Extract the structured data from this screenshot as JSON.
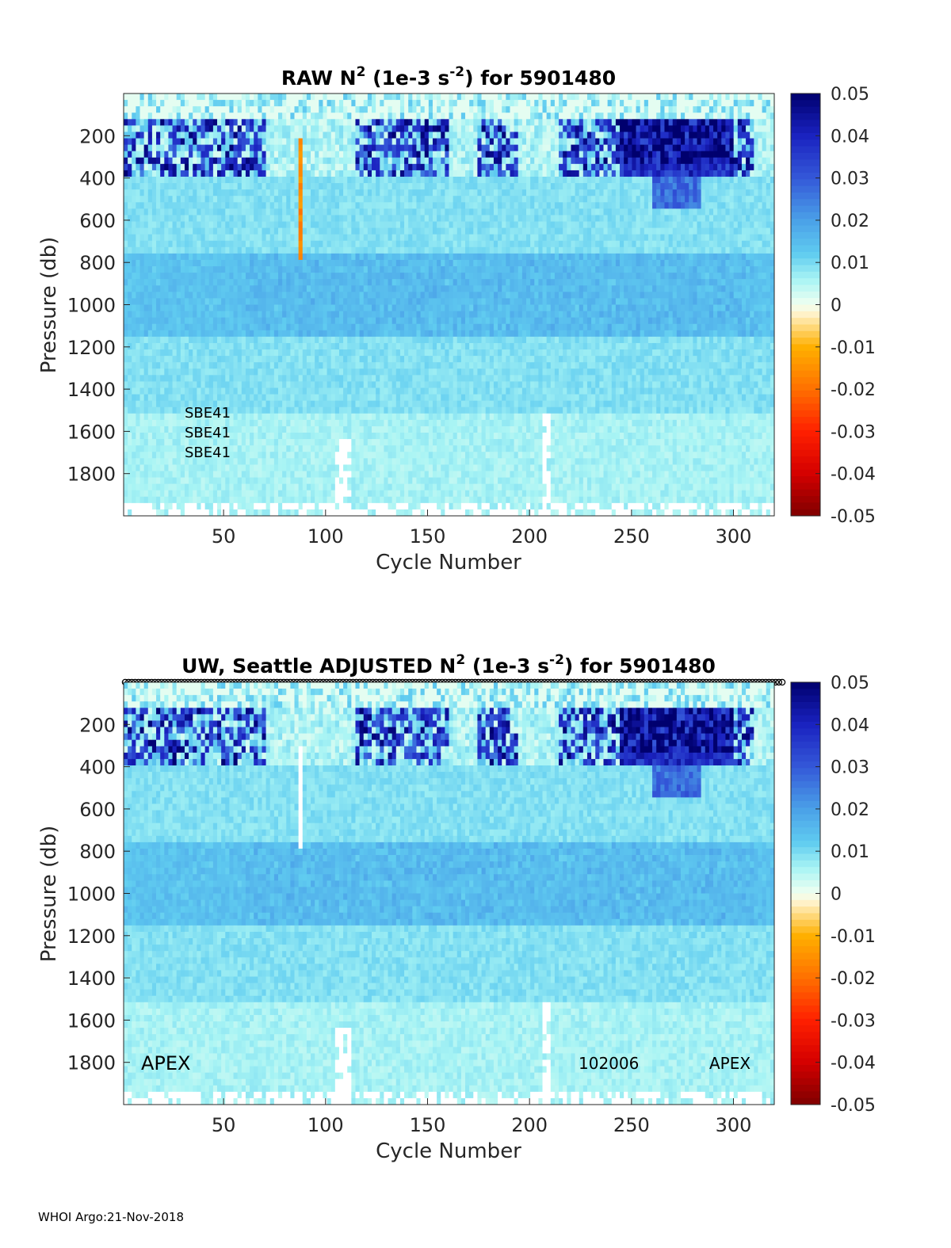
{
  "footer": "WHOI Argo:21-Nov-2018",
  "colormap": {
    "stops": [
      {
        "v": -0.05,
        "c": "#7f0000"
      },
      {
        "v": -0.04,
        "c": "#d40000"
      },
      {
        "v": -0.03,
        "c": "#ff2000"
      },
      {
        "v": -0.02,
        "c": "#ff7000"
      },
      {
        "v": -0.01,
        "c": "#ffb000"
      },
      {
        "v": -0.002,
        "c": "#fff4d0"
      },
      {
        "v": 0.0,
        "c": "#f0fff0"
      },
      {
        "v": 0.006,
        "c": "#a8f4f4"
      },
      {
        "v": 0.012,
        "c": "#60ccf0"
      },
      {
        "v": 0.02,
        "c": "#4aa0e8"
      },
      {
        "v": 0.03,
        "c": "#3458d8"
      },
      {
        "v": 0.04,
        "c": "#1a22c0"
      },
      {
        "v": 0.05,
        "c": "#00006e"
      }
    ]
  },
  "chart_data": [
    {
      "type": "heatmap",
      "title_prefix": "RAW N",
      "title_sup1": "2",
      "title_mid": " (1e-3 s",
      "title_sup2": "-2",
      "title_suffix": ") for 5901480",
      "xlabel": "Cycle Number",
      "ylabel": "Pressure (db)",
      "xlim": [
        1,
        320
      ],
      "ylim": [
        2000,
        0
      ],
      "xticks": [
        50,
        100,
        150,
        200,
        250,
        300
      ],
      "yticks": [
        200,
        400,
        600,
        800,
        1000,
        1200,
        1400,
        1600,
        1800
      ],
      "clim": [
        -0.05,
        0.05
      ],
      "colorbar_ticks": [
        "0.05",
        "0.04",
        "0.03",
        "0.02",
        "0.01",
        "0",
        "-0.01",
        "-0.02",
        "-0.03",
        "-0.04",
        "-0.05"
      ],
      "annotations": [
        "SBE41",
        "SBE41",
        "SBE41"
      ],
      "features": {
        "surface_strong_stratification_cycles": [
          [
            1,
            70
          ],
          [
            115,
            160
          ],
          [
            175,
            195
          ],
          [
            215,
            240
          ],
          [
            240,
            310
          ]
        ],
        "strongest_values_cycles": [
          [
            245,
            300
          ]
        ],
        "negative_anomaly_cycle": 88,
        "negative_anomaly_pressure": [
          200,
          800
        ]
      }
    },
    {
      "type": "heatmap",
      "title_prefix": "UW, Seattle  ADJUSTED N",
      "title_sup1": "2",
      "title_mid": " (1e-3 s",
      "title_sup2": "-2",
      "title_suffix": ") for 5901480",
      "xlabel": "Cycle Number",
      "ylabel": "Pressure (db)",
      "xlim": [
        1,
        320
      ],
      "ylim": [
        2000,
        0
      ],
      "xticks": [
        50,
        100,
        150,
        200,
        250,
        300
      ],
      "yticks": [
        200,
        400,
        600,
        800,
        1000,
        1200,
        1400,
        1600,
        1800
      ],
      "clim": [
        -0.05,
        0.05
      ],
      "colorbar_ticks": [
        "0.05",
        "0.04",
        "0.03",
        "0.02",
        "0.01",
        "0",
        "-0.01",
        "-0.02",
        "-0.03",
        "-0.04",
        "-0.05"
      ],
      "annotations": [
        "APEX",
        "102006",
        "APEX"
      ],
      "features": {
        "surface_strong_stratification_cycles": [
          [
            1,
            70
          ],
          [
            115,
            160
          ],
          [
            175,
            195
          ],
          [
            215,
            240
          ],
          [
            240,
            310
          ]
        ],
        "strongest_values_cycles": [
          [
            245,
            300
          ]
        ],
        "blank_cycle": 88
      }
    }
  ]
}
